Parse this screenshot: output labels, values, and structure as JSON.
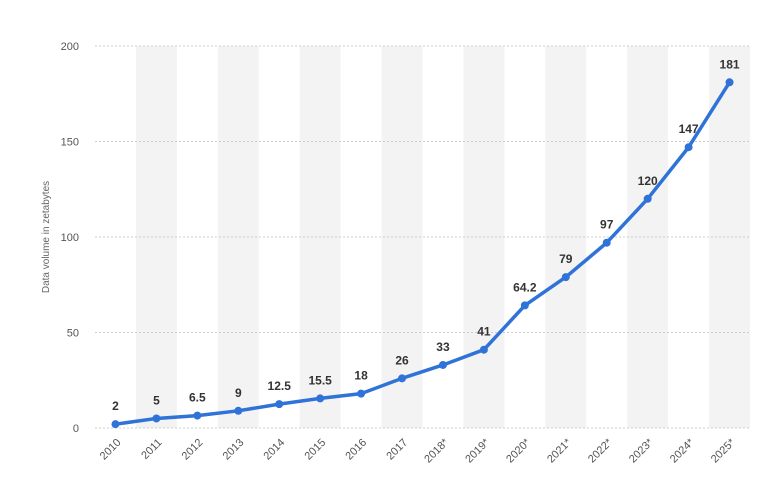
{
  "chart_data": {
    "type": "line",
    "ylabel": "Data volume in zetabytes",
    "xlabel": "",
    "categories": [
      "2010",
      "2011",
      "2012",
      "2013",
      "2014",
      "2015",
      "2016",
      "2017",
      "2018*",
      "2019*",
      "2020*",
      "2021*",
      "2022*",
      "2023*",
      "2024*",
      "2025*"
    ],
    "series": [
      {
        "values": [
          2,
          5,
          6.5,
          9,
          12.5,
          15.5,
          18,
          26,
          33,
          41,
          64.2,
          79,
          97,
          120,
          147,
          181
        ]
      }
    ],
    "data_labels": [
      "2",
      "5",
      "6.5",
      "9",
      "12.5",
      "15.5",
      "18",
      "26",
      "33",
      "41",
      "64.2",
      "79",
      "97",
      "120",
      "147",
      "181"
    ],
    "ylim": [
      0,
      200
    ],
    "yticks": [
      0,
      50,
      100,
      150,
      200
    ],
    "grid": true,
    "colors": {
      "line": "#2f72d8",
      "band": "#f3f3f3",
      "grid": "#cccccc"
    }
  }
}
